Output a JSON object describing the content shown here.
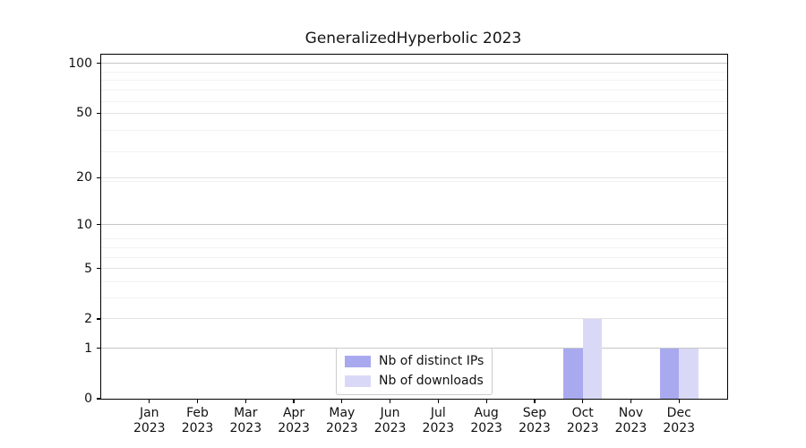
{
  "chart_data": {
    "type": "bar",
    "title": "GeneralizedHyperbolic 2023",
    "categories": [
      "Jan",
      "Feb",
      "Mar",
      "Apr",
      "May",
      "Jun",
      "Jul",
      "Aug",
      "Sep",
      "Oct",
      "Nov",
      "Dec"
    ],
    "category_year": "2023",
    "series": [
      {
        "name": "Nb of distinct IPs",
        "color": "#a9a9f0",
        "values": [
          0,
          0,
          0,
          0,
          0,
          0,
          0,
          0,
          0,
          1,
          0,
          1
        ]
      },
      {
        "name": "Nb of downloads",
        "color": "#d9d9f7",
        "values": [
          0,
          0,
          0,
          0,
          0,
          0,
          0,
          0,
          0,
          2,
          0,
          1
        ]
      }
    ],
    "yscale": "log1p",
    "yticks": [
      0,
      1,
      2,
      5,
      10,
      20,
      50,
      100
    ],
    "major_yticks": [
      1,
      10,
      100
    ],
    "minor_gridlines_at_1p": [
      4,
      5,
      7,
      8,
      9,
      20,
      30,
      40,
      60,
      70,
      80,
      90
    ],
    "ylim": [
      0,
      113
    ],
    "xlim": [
      -1,
      12
    ],
    "bar_width_ratio": 0.4,
    "grid": true,
    "legend_position": "lower center",
    "colors": {
      "grid_major": "#c6c6c6",
      "grid_labeled": "#e3e3e3",
      "grid_minor": "#f2f2f2",
      "axis": "#000000",
      "text": "#111111",
      "background": "#ffffff"
    }
  }
}
